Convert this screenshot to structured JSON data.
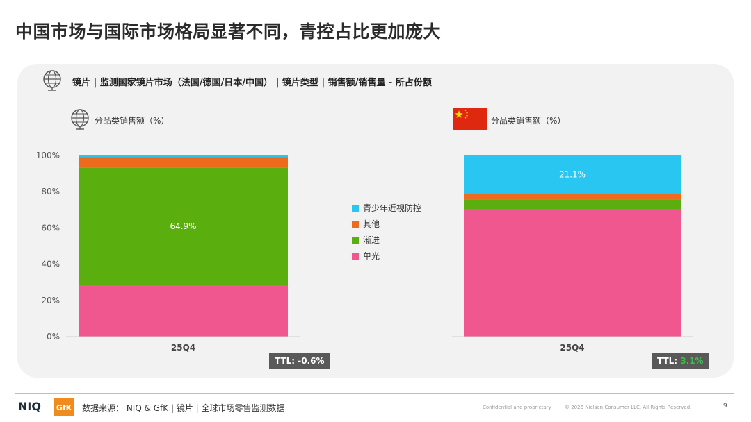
{
  "title": "中国市场与国际市场格局显著不同，青控占比更加庞大",
  "subtitle": "镜片 | 监测国家镜片市场（法国/德国/日本/中国） | 镜片类型 | 销售额/销售量 - 所占份额",
  "colors": {
    "youth_myopia": "#29c6f2",
    "other": "#ee6b1e",
    "progressive": "#5aaf0f",
    "single_vision": "#f0578e",
    "panel": "#f2f2f2"
  },
  "icons": {
    "global": "globe-icon",
    "china": "china-flag-icon"
  },
  "chart_data": [
    {
      "type": "bar",
      "stacked": true,
      "title": "分品类销售额（%）",
      "categories": [
        "25Q4"
      ],
      "ylim": [
        0,
        100
      ],
      "yticks": [
        "0%",
        "20%",
        "40%",
        "60%",
        "80%",
        "100%"
      ],
      "series": [
        {
          "name": "单光",
          "values": [
            28.5
          ]
        },
        {
          "name": "渐进",
          "values": [
            64.9
          ],
          "label": "64.9%"
        },
        {
          "name": "其他",
          "values": [
            5.8
          ]
        },
        {
          "name": "青少年近视防控",
          "values": [
            0.8
          ]
        }
      ],
      "ttl_label": "TTL: ",
      "ttl_value": "-0.6%"
    },
    {
      "type": "bar",
      "stacked": true,
      "title": "分品类销售额（%）",
      "categories": [
        "25Q4"
      ],
      "ylim": [
        0,
        100
      ],
      "series": [
        {
          "name": "单光",
          "values": [
            70.5
          ]
        },
        {
          "name": "渐进",
          "values": [
            5.0
          ]
        },
        {
          "name": "其他",
          "values": [
            3.4
          ]
        },
        {
          "name": "青少年近视防控",
          "values": [
            21.1
          ],
          "label": "21.1%"
        }
      ],
      "ttl_label": "TTL: ",
      "ttl_value": "3.1%"
    }
  ],
  "legend": [
    "青少年近视防控",
    "其他",
    "渐进",
    "单光"
  ],
  "footer": {
    "brand_niq": "NIQ",
    "brand_gfk": "GfK",
    "source": "数据来源： NIQ & GfK | 镜片 | 全球市场零售监测数据",
    "confidential": "Confidential and proprietary",
    "copyright": "© 2026 Nielsen Consumer LLC. All Rights Reserved.",
    "page": "9"
  }
}
